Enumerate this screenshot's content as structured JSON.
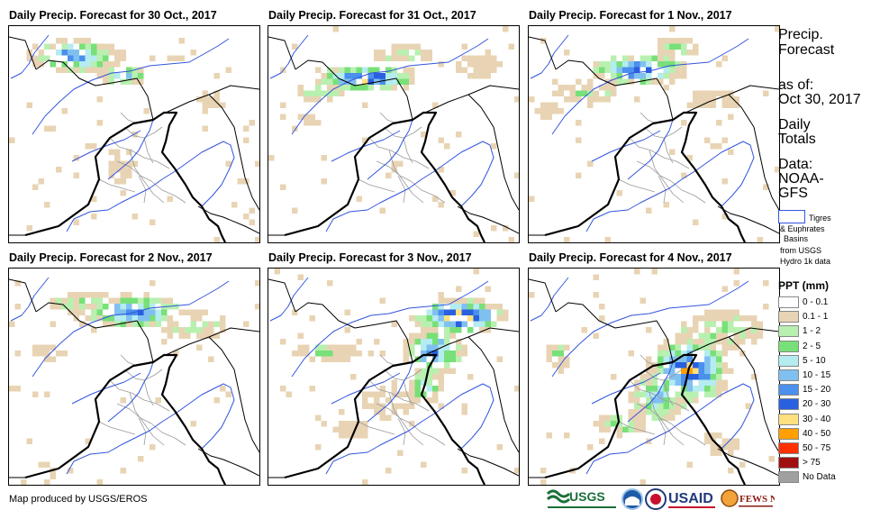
{
  "panels": [
    {
      "title": "Daily Precip. Forecast for 30 Oct., 2017"
    },
    {
      "title": "Daily Precip. Forecast for 31 Oct., 2017"
    },
    {
      "title": "Daily Precip. Forecast for 1 Nov., 2017"
    },
    {
      "title": "Daily Precip. Forecast for 2 Nov., 2017"
    },
    {
      "title": "Daily Precip. Forecast for 3 Nov., 2017"
    },
    {
      "title": "Daily Precip. Forecast for 4 Nov., 2017"
    }
  ],
  "sidebar": {
    "title_line1": "Precip.",
    "title_line2": "Forecast",
    "asof_label": "as of:",
    "asof_date": "Oct 30, 2017",
    "daily1": "Daily",
    "daily2": "Totals",
    "data1": "Data:",
    "data2": "NOAA-",
    "data3": "GFS",
    "basin_l1": "Tigres",
    "basin_l2": "& Euphrates",
    "basin_l3": "Basins",
    "basin_l4": "from USGS",
    "basin_l5": "Hydro 1k data"
  },
  "legend": {
    "title": "PPT (mm)",
    "items": [
      {
        "label": "0 - 0.1",
        "color": "#ffffff"
      },
      {
        "label": "0.1 - 1",
        "color": "#e8d4b4"
      },
      {
        "label": "1 - 2",
        "color": "#b8f0b0"
      },
      {
        "label": "2 - 5",
        "color": "#78e078"
      },
      {
        "label": "5 - 10",
        "color": "#b4ecf0"
      },
      {
        "label": "10 - 15",
        "color": "#80c0f0"
      },
      {
        "label": "15 - 20",
        "color": "#4a90ec"
      },
      {
        "label": "20 - 30",
        "color": "#2860e0"
      },
      {
        "label": "30 - 40",
        "color": "#ffe080"
      },
      {
        "label": "40 - 50",
        "color": "#ffa000"
      },
      {
        "label": "50 - 75",
        "color": "#ff3000"
      },
      {
        "label": "> 75",
        "color": "#a01010"
      },
      {
        "label": "No Data",
        "color": "#a0a0a0"
      }
    ]
  },
  "footer": {
    "credit": "Map produced by USGS/EROS"
  },
  "logos": {
    "usgs": "USGS",
    "usaid": "USAID",
    "fews": "FEWS NET"
  }
}
